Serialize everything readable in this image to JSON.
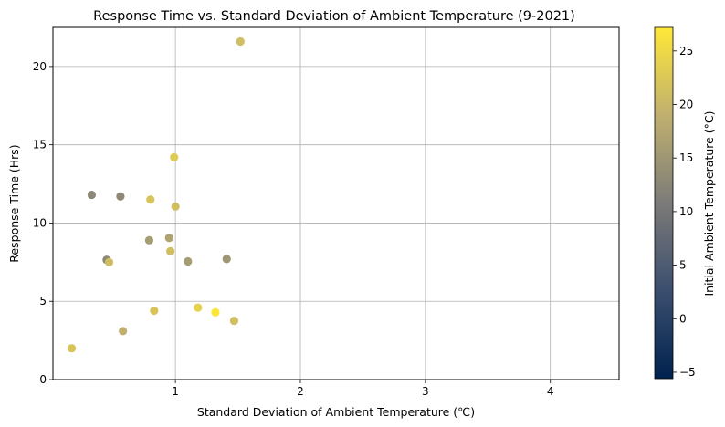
{
  "chart_data": {
    "type": "scatter",
    "title": "Response Time vs. Standard Deviation of Ambient Temperature (9-2021)",
    "xlabel": "Standard Deviation of Ambient Temperature (℃)",
    "ylabel": "Response Time (Hrs)",
    "colorbar_label": "Initial Ambient Temperature (°C)",
    "colormap": "cividis",
    "xlim": [
      0.02,
      4.55
    ],
    "ylim": [
      0,
      22.5
    ],
    "clim": [
      -5.6,
      27.2
    ],
    "x_ticks": [
      1,
      2,
      3,
      4
    ],
    "y_ticks": [
      0,
      5,
      10,
      15,
      20
    ],
    "c_ticks": [
      -5,
      0,
      5,
      10,
      15,
      20,
      25
    ],
    "grid": true,
    "points": [
      {
        "x": 0.17,
        "y": 2.0,
        "c": 22
      },
      {
        "x": 0.33,
        "y": 11.8,
        "c": 13
      },
      {
        "x": 0.45,
        "y": 7.65,
        "c": 13
      },
      {
        "x": 0.47,
        "y": 7.5,
        "c": 21
      },
      {
        "x": 0.56,
        "y": 11.7,
        "c": 13
      },
      {
        "x": 0.58,
        "y": 3.1,
        "c": 19
      },
      {
        "x": 0.79,
        "y": 8.9,
        "c": 16
      },
      {
        "x": 0.8,
        "y": 11.5,
        "c": 22
      },
      {
        "x": 0.83,
        "y": 4.4,
        "c": 22
      },
      {
        "x": 0.95,
        "y": 9.05,
        "c": 17
      },
      {
        "x": 0.96,
        "y": 8.2,
        "c": 21
      },
      {
        "x": 0.99,
        "y": 14.2,
        "c": 23
      },
      {
        "x": 1.0,
        "y": 11.05,
        "c": 21
      },
      {
        "x": 1.1,
        "y": 7.55,
        "c": 16
      },
      {
        "x": 1.18,
        "y": 4.6,
        "c": 24
      },
      {
        "x": 1.32,
        "y": 4.3,
        "c": 27
      },
      {
        "x": 1.41,
        "y": 7.7,
        "c": 15
      },
      {
        "x": 1.47,
        "y": 3.75,
        "c": 21
      },
      {
        "x": 1.52,
        "y": 21.6,
        "c": 21
      }
    ]
  }
}
